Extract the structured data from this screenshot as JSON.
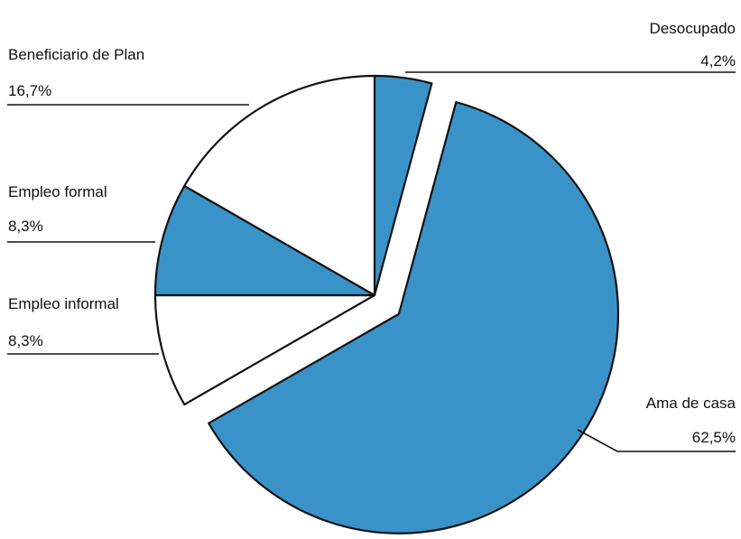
{
  "chart_data": {
    "type": "pie",
    "exploded": "Ama de casa",
    "slices": [
      {
        "label": "Desocupado",
        "value_label": "4,2%",
        "value": 4.2,
        "fill": "#3a93c8"
      },
      {
        "label": "Ama de casa",
        "value_label": "62,5%",
        "value": 62.5,
        "fill": "#3a93c8"
      },
      {
        "label": "Empleo informal",
        "value_label": "8,3%",
        "value": 8.3,
        "fill": "#ffffff"
      },
      {
        "label": "Empleo formal",
        "value_label": "8,3%",
        "value": 8.3,
        "fill": "#3a93c8"
      },
      {
        "label": "Beneficiario de Plan",
        "value_label": "16,7%",
        "value": 16.7,
        "fill": "#ffffff"
      }
    ]
  }
}
